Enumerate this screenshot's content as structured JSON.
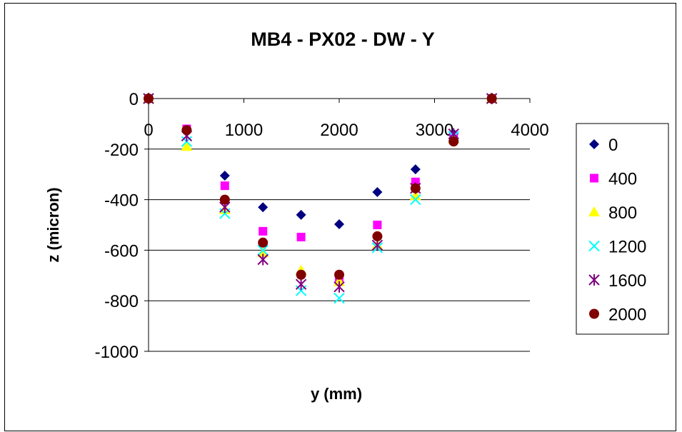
{
  "chart_data": {
    "type": "scatter",
    "title": "MB4 - PX02 - DW - Y",
    "xlabel": "y (mm)",
    "ylabel": "z (micron)",
    "xlim": [
      0,
      4000
    ],
    "ylim": [
      -1000,
      0
    ],
    "xticks": [
      0,
      1000,
      2000,
      3000,
      4000
    ],
    "yticks": [
      0,
      -200,
      -400,
      -600,
      -800,
      -1000
    ],
    "grid": "horizontal",
    "legend_position": "right",
    "x": [
      0,
      400,
      800,
      1200,
      1600,
      2000,
      2400,
      2800,
      3200,
      3600
    ],
    "series": [
      {
        "name": "0",
        "marker": "diamond",
        "color": "#000080",
        "values": [
          0,
          -125,
          -305,
          -430,
          -460,
          -497,
          -370,
          -280,
          -140,
          0
        ]
      },
      {
        "name": "400",
        "marker": "square",
        "color": "#ff00ff",
        "values": [
          0,
          -120,
          -345,
          -525,
          -548,
          -720,
          -500,
          -330,
          -150,
          0
        ]
      },
      {
        "name": "800",
        "marker": "triangle",
        "color": "#ffff00",
        "values": [
          0,
          -190,
          -440,
          -610,
          -680,
          -725,
          -580,
          -385,
          -160,
          0
        ]
      },
      {
        "name": "1200",
        "marker": "x",
        "color": "#00ffff",
        "values": [
          0,
          -170,
          -455,
          -600,
          -760,
          -790,
          -590,
          -400,
          -150,
          0
        ]
      },
      {
        "name": "1600",
        "marker": "asterisk",
        "color": "#800080",
        "values": [
          0,
          -148,
          -430,
          -637,
          -735,
          -745,
          -580,
          -355,
          -140,
          0
        ]
      },
      {
        "name": "2000",
        "marker": "circle",
        "color": "#800000",
        "values": [
          0,
          -125,
          -400,
          -570,
          -697,
          -697,
          -545,
          -355,
          -170,
          0
        ]
      }
    ]
  }
}
